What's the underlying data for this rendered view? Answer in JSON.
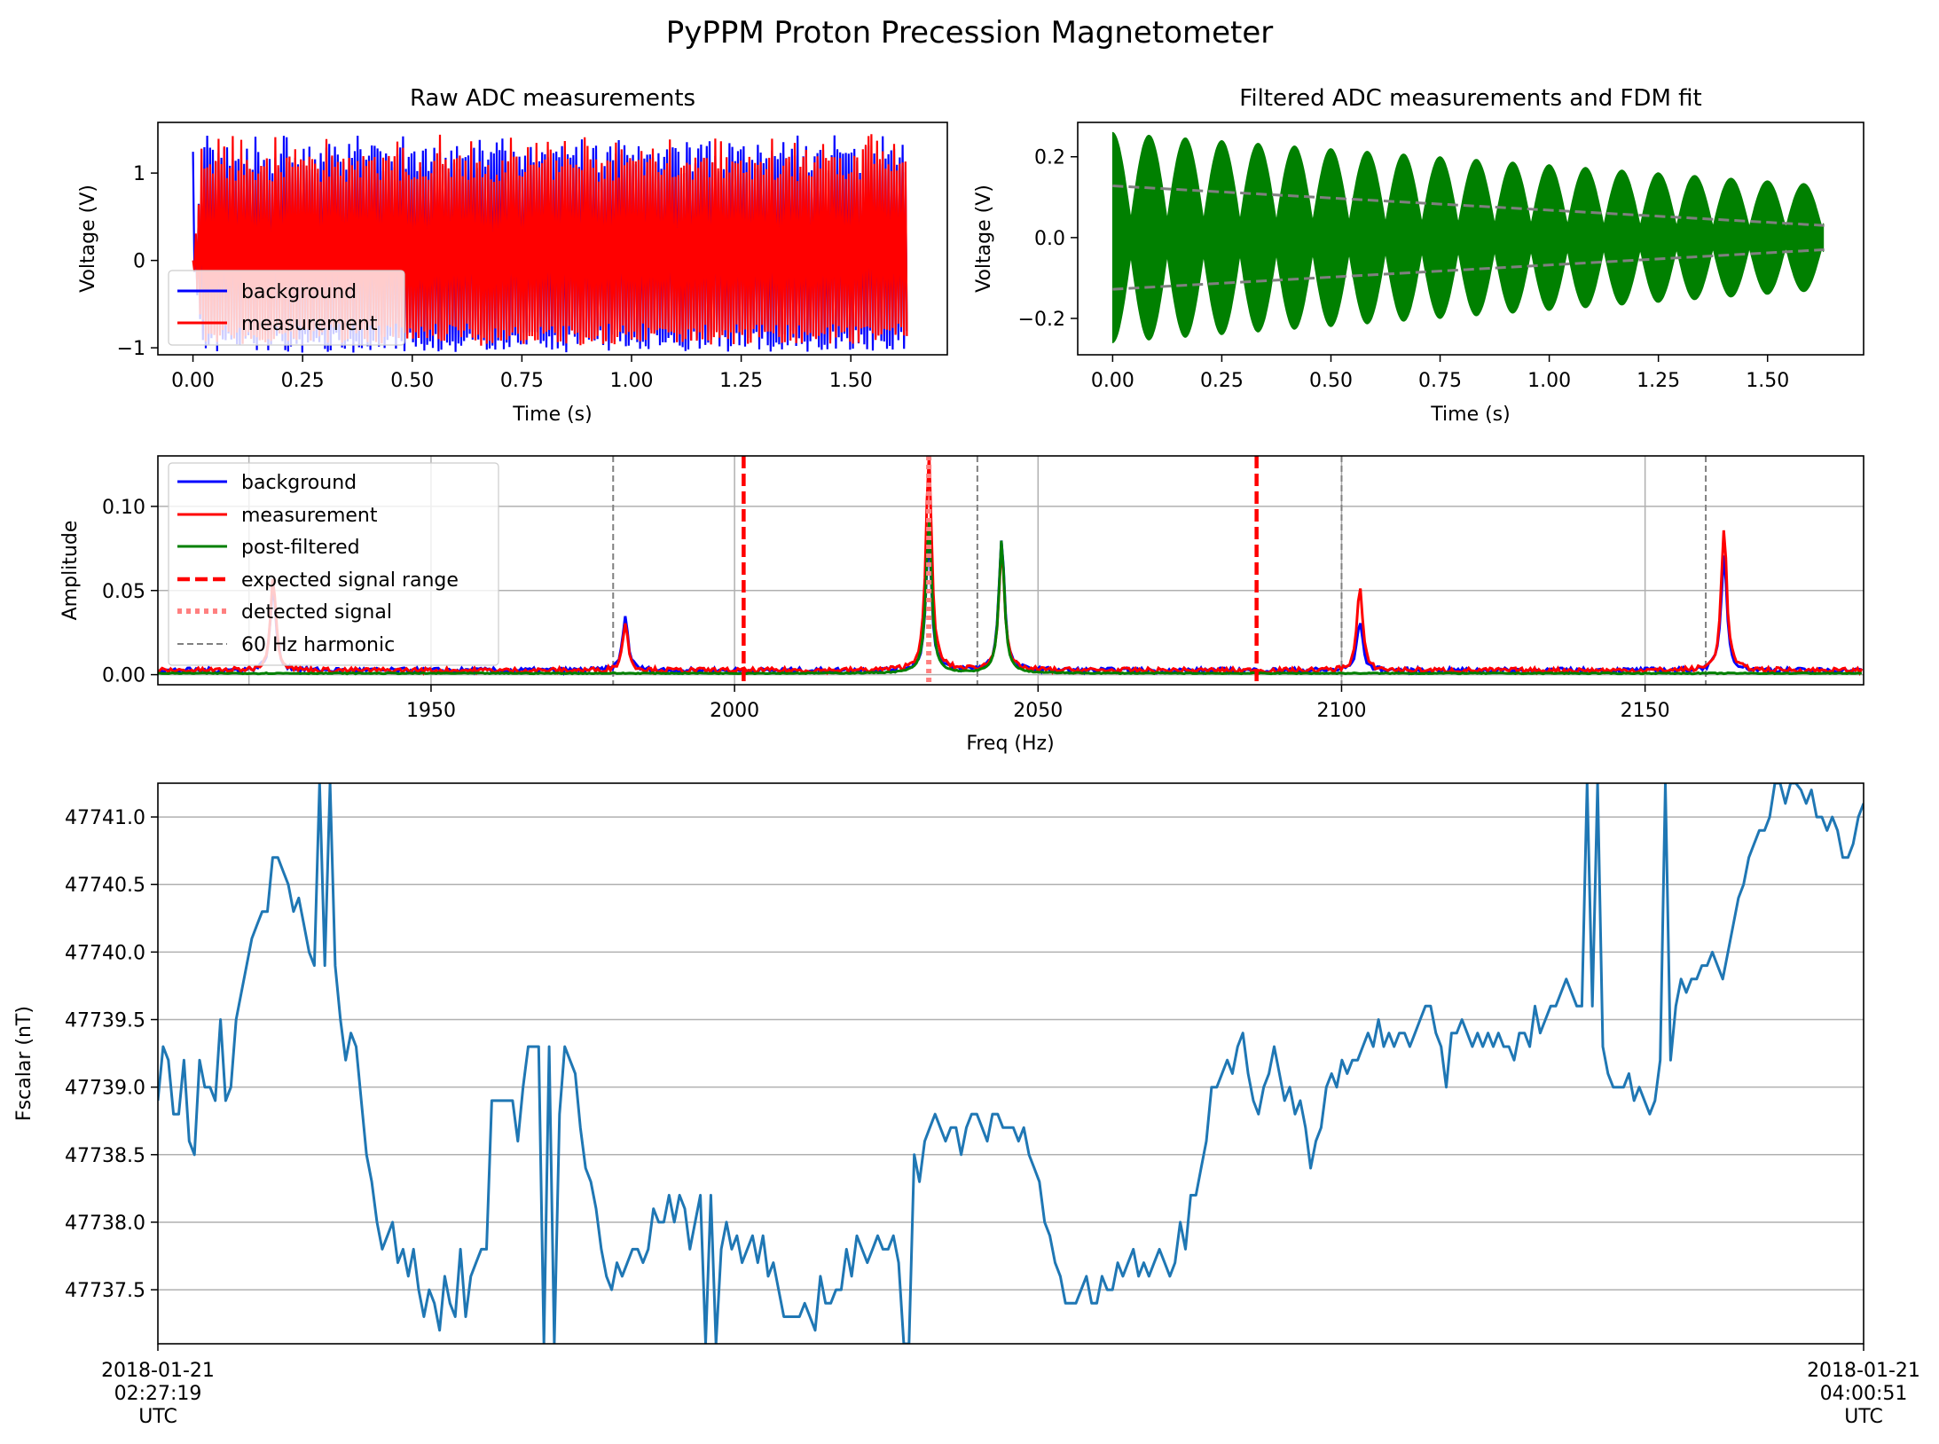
{
  "figure": {
    "suptitle": "PyPPM Proton Precession Magnetometer"
  },
  "chart_data": [
    {
      "id": "raw",
      "type": "line",
      "title": "Raw ADC measurements",
      "xlabel": "Time (s)",
      "ylabel": "Voltage (V)",
      "xlim": [
        -0.08,
        1.72
      ],
      "ylim": [
        -1.08,
        1.58
      ],
      "xticks": [
        0,
        0.25,
        0.5,
        0.75,
        1.0,
        1.25,
        1.5
      ],
      "xtick_labels": [
        "0.00",
        "0.25",
        "0.50",
        "0.75",
        "1.00",
        "1.25",
        "1.50"
      ],
      "yticks": [
        -1,
        0,
        1
      ],
      "ytick_labels": [
        "−1",
        "0",
        "1"
      ],
      "legend": "lower-left",
      "series": [
        {
          "name": "background",
          "color": "#0000ff",
          "x_range": [
            0,
            1.63
          ],
          "envelope": [
            0,
            1.32
          ],
          "peak_min": -1.05,
          "peak_max": 1.45
        },
        {
          "name": "measurement",
          "color": "#ff0000",
          "x_range": [
            0,
            1.63
          ],
          "envelope": [
            0,
            1.2
          ],
          "peak_min": -0.98,
          "peak_max": 1.45
        }
      ]
    },
    {
      "id": "filtered",
      "type": "line",
      "title": "Filtered ADC measurements and FDM fit",
      "xlabel": "Time (s)",
      "ylabel": "Voltage (V)",
      "xlim": [
        -0.08,
        1.72
      ],
      "ylim": [
        -0.29,
        0.285
      ],
      "xticks": [
        0,
        0.25,
        0.5,
        0.75,
        1.0,
        1.25,
        1.5
      ],
      "xtick_labels": [
        "0.00",
        "0.25",
        "0.50",
        "0.75",
        "1.00",
        "1.25",
        "1.50"
      ],
      "yticks": [
        -0.2,
        0,
        0.2
      ],
      "ytick_labels": [
        "−0.2",
        "0.0",
        "0.2"
      ],
      "series": [
        {
          "color": "#008000",
          "x_range": [
            0,
            1.63
          ],
          "beat_freq_hz": 12,
          "amp_start": 0.26,
          "amp_end": 0.13
        },
        {
          "color": "#808080",
          "style": "dashed",
          "fit_start": 0.128,
          "fit_end": 0.03
        }
      ]
    },
    {
      "id": "spectrum",
      "type": "line",
      "xlabel": "Freq (Hz)",
      "ylabel": "Amplitude",
      "xlim": [
        1905,
        2186
      ],
      "ylim": [
        -0.006,
        0.13
      ],
      "xticks": [
        1950,
        2000,
        2050,
        2100,
        2150
      ],
      "xtick_labels": [
        "1950",
        "2000",
        "2050",
        "2100",
        "2150"
      ],
      "yticks": [
        0,
        0.05,
        0.1
      ],
      "ytick_labels": [
        "0.00",
        "0.05",
        "0.10"
      ],
      "grid": true,
      "grid_x": [
        1920,
        1950,
        2000,
        2050,
        2100,
        2150
      ],
      "legend": "upper-left",
      "series": [
        {
          "name": "background",
          "color": "#0000ff",
          "style": "solid",
          "peaks": [
            [
              1924,
              0.05
            ],
            [
              1982,
              0.032
            ],
            [
              2032,
              0.08
            ],
            [
              2044,
              0.079
            ],
            [
              2103,
              0.03
            ],
            [
              2163,
              0.07
            ]
          ]
        },
        {
          "name": "measurement",
          "color": "#ff0000",
          "style": "solid",
          "peaks": [
            [
              1924,
              0.055
            ],
            [
              1982,
              0.028
            ],
            [
              2032,
              0.13
            ],
            [
              2044,
              0.075
            ],
            [
              2103,
              0.05
            ],
            [
              2163,
              0.085
            ]
          ]
        },
        {
          "name": "post-filtered",
          "color": "#008000",
          "style": "solid",
          "peaks": [
            [
              2032,
              0.09
            ],
            [
              2044,
              0.079
            ]
          ]
        },
        {
          "name": "expected signal range",
          "color": "#ff0000",
          "style": "dashed",
          "x": [
            2001.5,
            2086
          ]
        },
        {
          "name": "detected signal",
          "color": "#ff8080",
          "style": "dotted",
          "x": [
            2032
          ]
        },
        {
          "name": "60 Hz harmonic",
          "color": "#808080",
          "style": "dashed",
          "x": [
            1980,
            2040,
            2100,
            2160
          ]
        }
      ]
    },
    {
      "id": "timeseries",
      "type": "line",
      "ylabel": "Fscalar (nT)",
      "xlim": [
        0,
        100
      ],
      "ylim": [
        47737.1,
        47741.25
      ],
      "yticks": [
        47737.5,
        47738.0,
        47738.5,
        47739.0,
        47739.5,
        47740.0,
        47740.5,
        47741.0
      ],
      "ytick_labels": [
        "47737.5",
        "47738.0",
        "47738.5",
        "47739.0",
        "47739.5",
        "47740.0",
        "47740.5",
        "47741.0"
      ],
      "grid": true,
      "xtick_labels": [
        {
          "line1": "2018-01-21",
          "line2": "02:27:19",
          "line3": "UTC"
        },
        {
          "line1": "2018-01-21",
          "line2": "04:00:51",
          "line3": "UTC"
        }
      ],
      "series": [
        {
          "color": "#1f77b4",
          "y": [
            47738.9,
            47739.3,
            47739.2,
            47738.8,
            47738.8,
            47739.2,
            47738.6,
            47738.5,
            47739.2,
            47739.0,
            47739.0,
            47738.9,
            47739.5,
            47738.9,
            47739.0,
            47739.5,
            47739.7,
            47739.9,
            47740.1,
            47740.2,
            47740.3,
            47740.3,
            47740.7,
            47740.7,
            47740.6,
            47740.5,
            47740.3,
            47740.4,
            47740.2,
            47740.0,
            47739.9,
            47741.25,
            47739.9,
            47741.25,
            47739.9,
            47739.5,
            47739.2,
            47739.4,
            47739.3,
            47738.9,
            47738.5,
            47738.3,
            47738.0,
            47737.8,
            47737.9,
            47738.0,
            47737.7,
            47737.8,
            47737.6,
            47737.8,
            47737.5,
            47737.3,
            47737.5,
            47737.4,
            47737.2,
            47737.6,
            47737.4,
            47737.3,
            47737.8,
            47737.3,
            47737.6,
            47737.7,
            47737.8,
            47737.8,
            47738.9,
            47738.9,
            47738.9,
            47738.9,
            47738.9,
            47738.6,
            47739.0,
            47739.3,
            47739.3,
            47739.3,
            47737.1,
            47739.3,
            47737.1,
            47738.8,
            47739.3,
            47739.2,
            47739.1,
            47738.7,
            47738.4,
            47738.3,
            47738.1,
            47737.8,
            47737.6,
            47737.5,
            47737.7,
            47737.6,
            47737.7,
            47737.8,
            47737.8,
            47737.7,
            47737.8,
            47738.1,
            47738.0,
            47738.0,
            47738.2,
            47738.0,
            47738.2,
            47738.1,
            47737.8,
            47738.0,
            47738.2,
            47737.1,
            47738.2,
            47737.1,
            47737.8,
            47738.0,
            47737.8,
            47737.9,
            47737.7,
            47737.8,
            47737.9,
            47737.7,
            47737.9,
            47737.6,
            47737.7,
            47737.5,
            47737.3,
            47737.3,
            47737.3,
            47737.3,
            47737.4,
            47737.3,
            47737.2,
            47737.6,
            47737.4,
            47737.4,
            47737.5,
            47737.5,
            47737.8,
            47737.6,
            47737.9,
            47737.8,
            47737.7,
            47737.8,
            47737.9,
            47737.8,
            47737.8,
            47737.9,
            47737.7,
            47737.1,
            47737.1,
            47738.5,
            47738.3,
            47738.6,
            47738.7,
            47738.8,
            47738.7,
            47738.6,
            47738.7,
            47738.7,
            47738.5,
            47738.7,
            47738.8,
            47738.8,
            47738.7,
            47738.6,
            47738.8,
            47738.8,
            47738.7,
            47738.7,
            47738.7,
            47738.6,
            47738.7,
            47738.5,
            47738.4,
            47738.3,
            47738.0,
            47737.9,
            47737.7,
            47737.6,
            47737.4,
            47737.4,
            47737.4,
            47737.5,
            47737.6,
            47737.4,
            47737.4,
            47737.6,
            47737.5,
            47737.5,
            47737.7,
            47737.6,
            47737.7,
            47737.8,
            47737.6,
            47737.7,
            47737.6,
            47737.7,
            47737.8,
            47737.7,
            47737.6,
            47737.7,
            47738.0,
            47737.8,
            47738.2,
            47738.2,
            47738.4,
            47738.6,
            47739.0,
            47739.0,
            47739.1,
            47739.2,
            47739.1,
            47739.3,
            47739.4,
            47739.1,
            47738.9,
            47738.8,
            47739.0,
            47739.1,
            47739.3,
            47739.1,
            47738.9,
            47739.0,
            47738.8,
            47738.9,
            47738.7,
            47738.4,
            47738.6,
            47738.7,
            47739.0,
            47739.1,
            47739.0,
            47739.2,
            47739.1,
            47739.2,
            47739.2,
            47739.3,
            47739.4,
            47739.3,
            47739.5,
            47739.3,
            47739.4,
            47739.3,
            47739.4,
            47739.4,
            47739.3,
            47739.4,
            47739.5,
            47739.6,
            47739.6,
            47739.4,
            47739.3,
            47739.0,
            47739.4,
            47739.4,
            47739.5,
            47739.4,
            47739.3,
            47739.4,
            47739.3,
            47739.4,
            47739.3,
            47739.4,
            47739.3,
            47739.3,
            47739.2,
            47739.4,
            47739.4,
            47739.3,
            47739.6,
            47739.4,
            47739.5,
            47739.6,
            47739.6,
            47739.7,
            47739.8,
            47739.7,
            47739.6,
            47739.6,
            47741.25,
            47739.6,
            47741.25,
            47739.3,
            47739.1,
            47739.0,
            47739.0,
            47739.0,
            47739.1,
            47738.9,
            47739.0,
            47738.9,
            47738.8,
            47738.9,
            47739.2,
            47741.25,
            47739.2,
            47739.6,
            47739.8,
            47739.7,
            47739.8,
            47739.8,
            47739.9,
            47739.9,
            47740.0,
            47739.9,
            47739.8,
            47740.0,
            47740.2,
            47740.4,
            47740.5,
            47740.7,
            47740.8,
            47740.9,
            47740.9,
            47741.0,
            47741.25,
            47741.25,
            47741.1,
            47741.25,
            47741.25,
            47741.2,
            47741.1,
            47741.2,
            47741.0,
            47741.0,
            47740.9,
            47741.0,
            47740.9,
            47740.7,
            47740.7,
            47740.8,
            47741.0,
            47741.1
          ]
        }
      ]
    }
  ]
}
